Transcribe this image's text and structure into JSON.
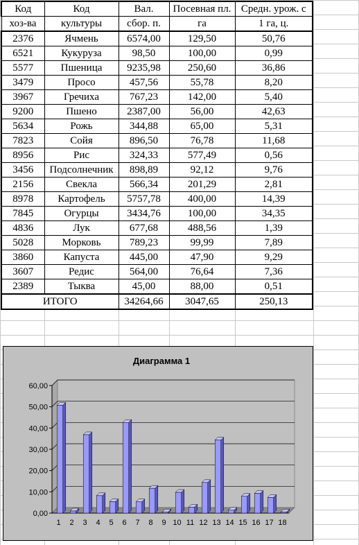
{
  "table": {
    "headers": [
      [
        "Код",
        "Код",
        "Вал.",
        "Посевная пл.",
        "Средн. урож. с"
      ],
      [
        "хоз-ва",
        "культуры",
        "сбор. п.",
        "га",
        "1 га, ц."
      ]
    ],
    "rows": [
      [
        "2376",
        "Ячмень",
        "6574,00",
        "129,50",
        "50,76"
      ],
      [
        "6521",
        "Кукуруза",
        "98,50",
        "100,00",
        "0,99"
      ],
      [
        "5577",
        "Пшеница",
        "9235,98",
        "250,60",
        "36,86"
      ],
      [
        "3479",
        "Просо",
        "457,56",
        "55,78",
        "8,20"
      ],
      [
        "3967",
        "Гречиха",
        "767,23",
        "142,00",
        "5,40"
      ],
      [
        "9200",
        "Пшено",
        "2387,00",
        "56,00",
        "42,63"
      ],
      [
        "5634",
        "Рожь",
        "344,88",
        "65,00",
        "5,31"
      ],
      [
        "7823",
        "Сойя",
        "896,50",
        "76,78",
        "11,68"
      ],
      [
        "8956",
        "Рис",
        "324,33",
        "577,49",
        "0,56"
      ],
      [
        "3456",
        "Подсолнечник",
        "898,89",
        "92,12",
        "9,76"
      ],
      [
        "2156",
        "Свекла",
        "566,34",
        "201,29",
        "2,81"
      ],
      [
        "8978",
        "Картофель",
        "5757,78",
        "400,00",
        "14,39"
      ],
      [
        "7845",
        "Огурцы",
        "3434,76",
        "100,00",
        "34,35"
      ],
      [
        "4836",
        "Лук",
        "677,68",
        "488,56",
        "1,39"
      ],
      [
        "5028",
        "Морковь",
        "789,23",
        "99,99",
        "7,89"
      ],
      [
        "3860",
        "Капуста",
        "445,00",
        "47,90",
        "9,29"
      ],
      [
        "3607",
        "Редис",
        "564,00",
        "76,64",
        "7,36"
      ],
      [
        "2389",
        "Тыква",
        "45,00",
        "88,00",
        "0,51"
      ]
    ],
    "total": [
      "ИТОГО",
      "34264,66",
      "3047,65",
      "250,13"
    ]
  },
  "chart_data": {
    "type": "bar",
    "title": "Диаграмма 1",
    "categories": [
      "1",
      "2",
      "3",
      "4",
      "5",
      "6",
      "7",
      "8",
      "9",
      "10",
      "11",
      "12",
      "13",
      "14",
      "15",
      "16",
      "17",
      "18"
    ],
    "values": [
      50.76,
      0.99,
      36.86,
      8.2,
      5.4,
      42.63,
      5.31,
      11.68,
      0.56,
      9.76,
      2.81,
      14.39,
      34.35,
      1.39,
      7.89,
      9.29,
      7.36,
      0.51
    ],
    "ylim": [
      0,
      60
    ],
    "yticks": [
      "0,00",
      "10,00",
      "20,00",
      "30,00",
      "40,00",
      "50,00",
      "60,00"
    ],
    "grid": true,
    "legend": "none",
    "colors": {
      "bar": "#9999ff",
      "bar_side": "#5a5ab8",
      "bar_top": "#c4c4ff",
      "plot_bg": "#c0c0c0",
      "outer_bg": "#c0c0c0"
    }
  }
}
